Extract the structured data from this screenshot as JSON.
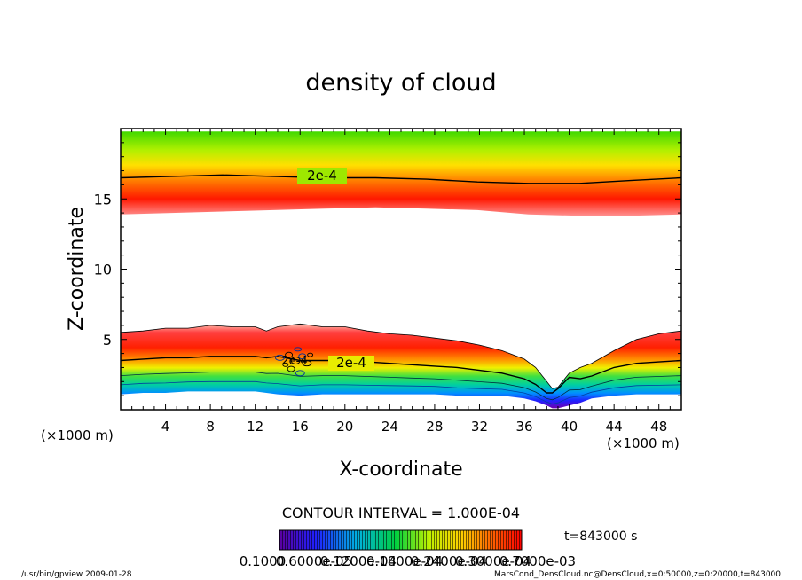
{
  "chart_data": {
    "type": "heatmap",
    "title": "density of cloud",
    "xlabel": "X-coordinate",
    "ylabel": "Z-coordinate",
    "x_unit": "(×1000 m)",
    "z_unit": "(×1000 m)",
    "xlim": [
      0,
      50
    ],
    "ylim": [
      0,
      20
    ],
    "x_ticks": [
      4,
      8,
      12,
      16,
      20,
      24,
      28,
      32,
      36,
      40,
      44,
      48
    ],
    "y_ticks": [
      5,
      10,
      15
    ],
    "contour_interval_text": "CONTOUR INTERVAL = 1.000E-04",
    "contour_labels": [
      "2e-4",
      "2e-4",
      "2e-4"
    ],
    "time_text": "t=843000 s",
    "colorbar_labels": [
      "0.1000",
      "0.6000e-05",
      "0.1200e-04",
      "0.1800e-04",
      "0.2400e-04",
      "0.3000e-04",
      "0.7000e-03"
    ],
    "colors": {
      "low": "#5a00a0",
      "mid_low": "#0040ff",
      "mid": "#00c860",
      "mid_high": "#f0e000",
      "high": "#ff0000",
      "edge": "#ffd0c8"
    },
    "upper_layer": {
      "top_z": 19.8,
      "contour_z": [
        16.5,
        16.6,
        16.7,
        16.6,
        16.5,
        16.5,
        16.4,
        16.2,
        16.1,
        16.1,
        16.3,
        16.5
      ],
      "band_bottom_z": [
        13.9,
        14.0,
        14.1,
        14.2,
        14.3,
        14.4,
        14.3,
        14.2,
        13.9,
        13.8,
        13.8,
        13.9
      ]
    },
    "lower_layer": {
      "x": [
        0,
        2,
        4,
        6,
        8,
        10,
        12,
        13,
        14,
        16,
        18,
        20,
        22,
        24,
        26,
        28,
        30,
        32,
        34,
        36,
        37,
        38,
        38.5,
        39,
        40,
        41,
        42,
        44,
        46,
        48,
        50
      ],
      "top_z": [
        5.5,
        5.6,
        5.8,
        5.8,
        6.0,
        5.9,
        5.9,
        5.6,
        5.9,
        6.1,
        5.9,
        5.9,
        5.6,
        5.4,
        5.3,
        5.1,
        4.9,
        4.6,
        4.2,
        3.6,
        3.0,
        2.0,
        1.5,
        1.6,
        2.6,
        3.0,
        3.3,
        4.2,
        5.0,
        5.4,
        5.6
      ],
      "contour_z": [
        3.5,
        3.6,
        3.7,
        3.7,
        3.8,
        3.8,
        3.8,
        3.7,
        3.8,
        3.5,
        3.5,
        3.5,
        3.4,
        3.3,
        3.2,
        3.1,
        3.0,
        2.8,
        2.6,
        2.2,
        1.8,
        1.2,
        1.2,
        1.5,
        2.3,
        2.2,
        2.4,
        3.0,
        3.3,
        3.4,
        3.5
      ],
      "bottom_z": [
        1.1,
        1.2,
        1.2,
        1.3,
        1.3,
        1.3,
        1.3,
        1.2,
        1.1,
        1.0,
        1.1,
        1.1,
        1.1,
        1.1,
        1.1,
        1.1,
        1.0,
        1.0,
        1.0,
        0.8,
        0.6,
        0.3,
        0.1,
        0.1,
        0.3,
        0.5,
        0.8,
        1.0,
        1.1,
        1.1,
        1.1
      ]
    }
  },
  "footer": {
    "left": "/usr/bin/gpview  2009-01-28",
    "right": "MarsCond_DensCloud.nc@DensCloud,x=0:50000,z=0:20000,t=843000"
  }
}
